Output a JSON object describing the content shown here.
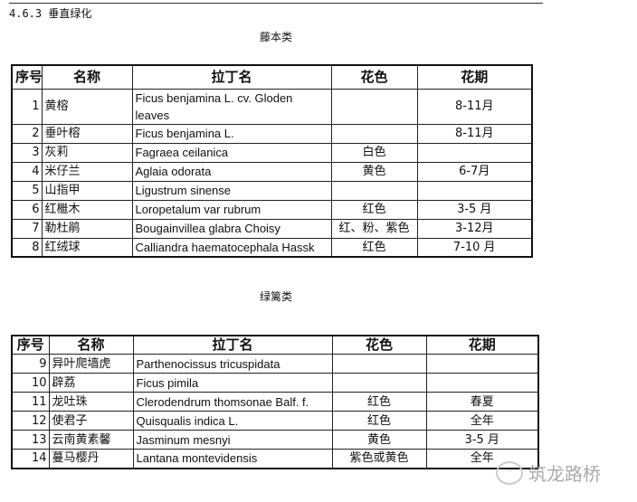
{
  "section_title": "4.6.3 垂直绿化",
  "headers": [
    "序号",
    "名称",
    "拉丁名",
    "花色",
    "花期"
  ],
  "table1": {
    "caption": "藤本类",
    "rows": [
      {
        "no": "1",
        "name": "黄榕",
        "latin": "Ficus benjamina L. cv. Gloden leaves",
        "color": "",
        "period": "8-11月"
      },
      {
        "no": "2",
        "name": "垂叶榕",
        "latin": "Ficus benjamina L.",
        "color": "",
        "period": "8-11月"
      },
      {
        "no": "3",
        "name": "灰莉",
        "latin": "Fagraea ceilanica",
        "color": "白色",
        "period": ""
      },
      {
        "no": "4",
        "name": "米仔兰",
        "latin": "Aglaia odorata",
        "color": "黄色",
        "period": "6-7月"
      },
      {
        "no": "5",
        "name": "山指甲",
        "latin": "Ligustrum sinense",
        "color": "",
        "period": ""
      },
      {
        "no": "6",
        "name": "红檵木",
        "latin": "Loropetalum var rubrum",
        "color": "红色",
        "period": "3-5 月"
      },
      {
        "no": "7",
        "name": "勒杜鹃",
        "latin": "Bougainvillea glabra Choisy",
        "color": "红、粉、紫色",
        "period": "3-12月"
      },
      {
        "no": "8",
        "name": "红绒球",
        "latin": "Calliandra  haematocephala  Hassk",
        "color": "红色",
        "period": "7-10 月"
      }
    ]
  },
  "table2": {
    "caption": "绿篱类",
    "rows": [
      {
        "no": "9",
        "name": "异叶爬墙虎",
        "latin": "Parthenocissus tricuspidata",
        "color": "",
        "period": ""
      },
      {
        "no": "10",
        "name": "辟荔",
        "latin": "Ficus pimila",
        "color": "",
        "period": ""
      },
      {
        "no": "11",
        "name": "龙吐珠",
        "latin": "Clerodendrum thomsonae Balf. f.",
        "color": "红色",
        "period": "春夏"
      },
      {
        "no": "12",
        "name": "使君子",
        "latin": "Quisqualis indica L.",
        "color": "红色",
        "period": "全年"
      },
      {
        "no": "13",
        "name": "云南黄素馨",
        "latin": "Jasminum mesnyi",
        "color": "黄色",
        "period": "3-5 月"
      },
      {
        "no": "14",
        "name": "蔓马樱丹",
        "latin": "Lantana montevidensis",
        "color": "紫色或黄色",
        "period": "全年"
      }
    ]
  },
  "watermark": "筑龙路桥"
}
